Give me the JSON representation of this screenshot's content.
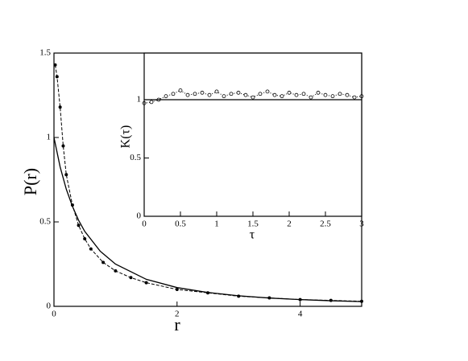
{
  "chart_data": [
    {
      "type": "line",
      "x_label": "r",
      "y_label": "P(r)",
      "xlim": [
        0,
        5
      ],
      "ylim": [
        0,
        1.5
      ],
      "xticks": [
        0,
        2,
        4
      ],
      "yticks": [
        0,
        0.5,
        1,
        1.5
      ],
      "series": [
        {
          "color": "#000000",
          "style": "dashed",
          "marker": "filled",
          "x": [
            0.02,
            0.05,
            0.1,
            0.15,
            0.2,
            0.3,
            0.4,
            0.5,
            0.6,
            0.8,
            1,
            1.25,
            1.5,
            2,
            2.5,
            3,
            3.5,
            4,
            4.5,
            5
          ],
          "values": [
            1.43,
            1.36,
            1.18,
            0.95,
            0.78,
            0.6,
            0.48,
            0.4,
            0.34,
            0.26,
            0.21,
            0.17,
            0.14,
            0.1,
            0.08,
            0.06,
            0.05,
            0.04,
            0.035,
            0.03
          ]
        },
        {
          "color": "#000000",
          "style": "solid",
          "marker": "none",
          "x": [
            0,
            0.1,
            0.2,
            0.3,
            0.4,
            0.5,
            0.75,
            1,
            1.5,
            2,
            2.5,
            3,
            3.5,
            4,
            4.5,
            5
          ],
          "values": [
            1,
            0.826,
            0.694,
            0.592,
            0.51,
            0.444,
            0.327,
            0.25,
            0.16,
            0.111,
            0.082,
            0.0625,
            0.049,
            0.04,
            0.033,
            0.028
          ]
        }
      ]
    },
    {
      "type": "line",
      "x_label": "τ",
      "y_label": "K(τ)",
      "xlim": [
        0,
        3
      ],
      "ylim": [
        0,
        1.4
      ],
      "xticks": [
        0,
        0.5,
        1,
        1.5,
        2,
        2.5,
        3
      ],
      "yticks": [
        0,
        0.5,
        1
      ],
      "series": [
        {
          "color": "#000000",
          "style": "dotted",
          "marker": "open",
          "x": [
            0,
            0.1,
            0.2,
            0.3,
            0.4,
            0.5,
            0.6,
            0.7,
            0.8,
            0.9,
            1,
            1.1,
            1.2,
            1.3,
            1.4,
            1.5,
            1.6,
            1.7,
            1.8,
            1.9,
            2,
            2.1,
            2.2,
            2.3,
            2.4,
            2.5,
            2.6,
            2.7,
            2.8,
            2.9,
            3
          ],
          "values": [
            0.97,
            0.98,
            1.0,
            1.03,
            1.05,
            1.08,
            1.04,
            1.05,
            1.06,
            1.04,
            1.07,
            1.03,
            1.05,
            1.06,
            1.04,
            1.02,
            1.05,
            1.07,
            1.04,
            1.03,
            1.06,
            1.04,
            1.05,
            1.02,
            1.06,
            1.04,
            1.03,
            1.05,
            1.04,
            1.02,
            1.03
          ]
        },
        {
          "color": "#000000",
          "style": "solid",
          "marker": "none",
          "x": [
            0,
            3
          ],
          "values": [
            1,
            1
          ]
        }
      ]
    }
  ]
}
